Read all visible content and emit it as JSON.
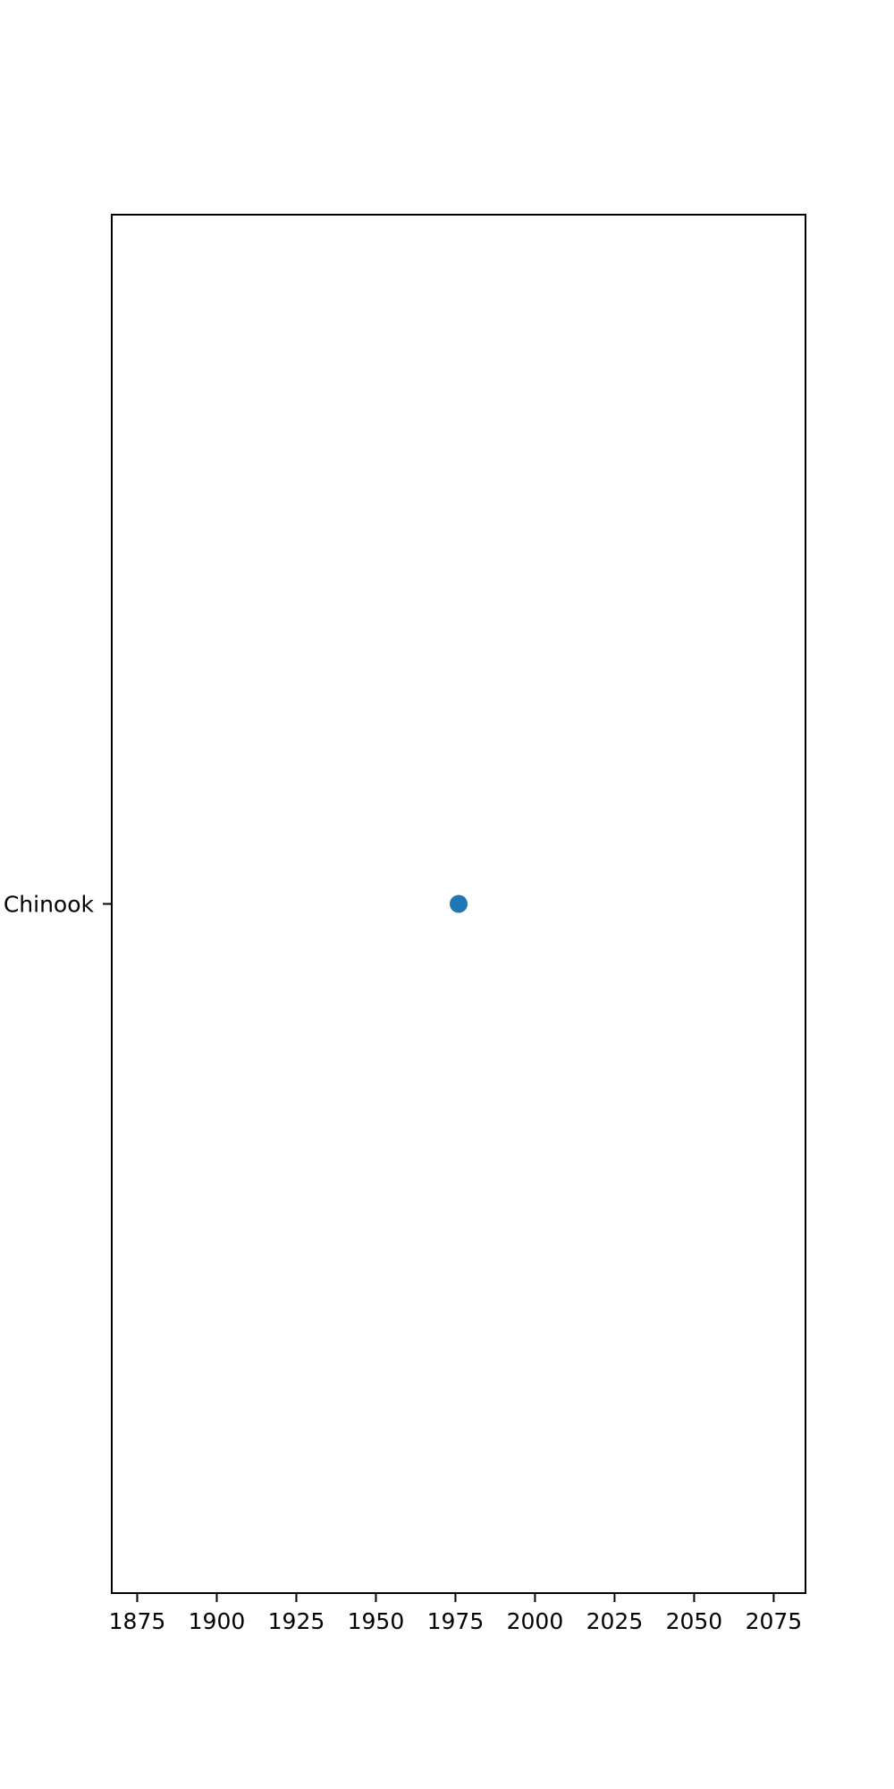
{
  "chart_data": {
    "type": "scatter",
    "title": "",
    "xlabel": "",
    "ylabel": "",
    "xlim": [
      1867,
      2085
    ],
    "x_ticks": [
      1875,
      1900,
      1925,
      1950,
      1975,
      2000,
      2025,
      2050,
      2075
    ],
    "categories": [
      "Chinook"
    ],
    "points": [
      {
        "x": 1976,
        "category": "Chinook"
      }
    ],
    "grid": false,
    "legend": "none",
    "colors": {
      "point": "#1f77b4",
      "axes": "#000000"
    }
  }
}
